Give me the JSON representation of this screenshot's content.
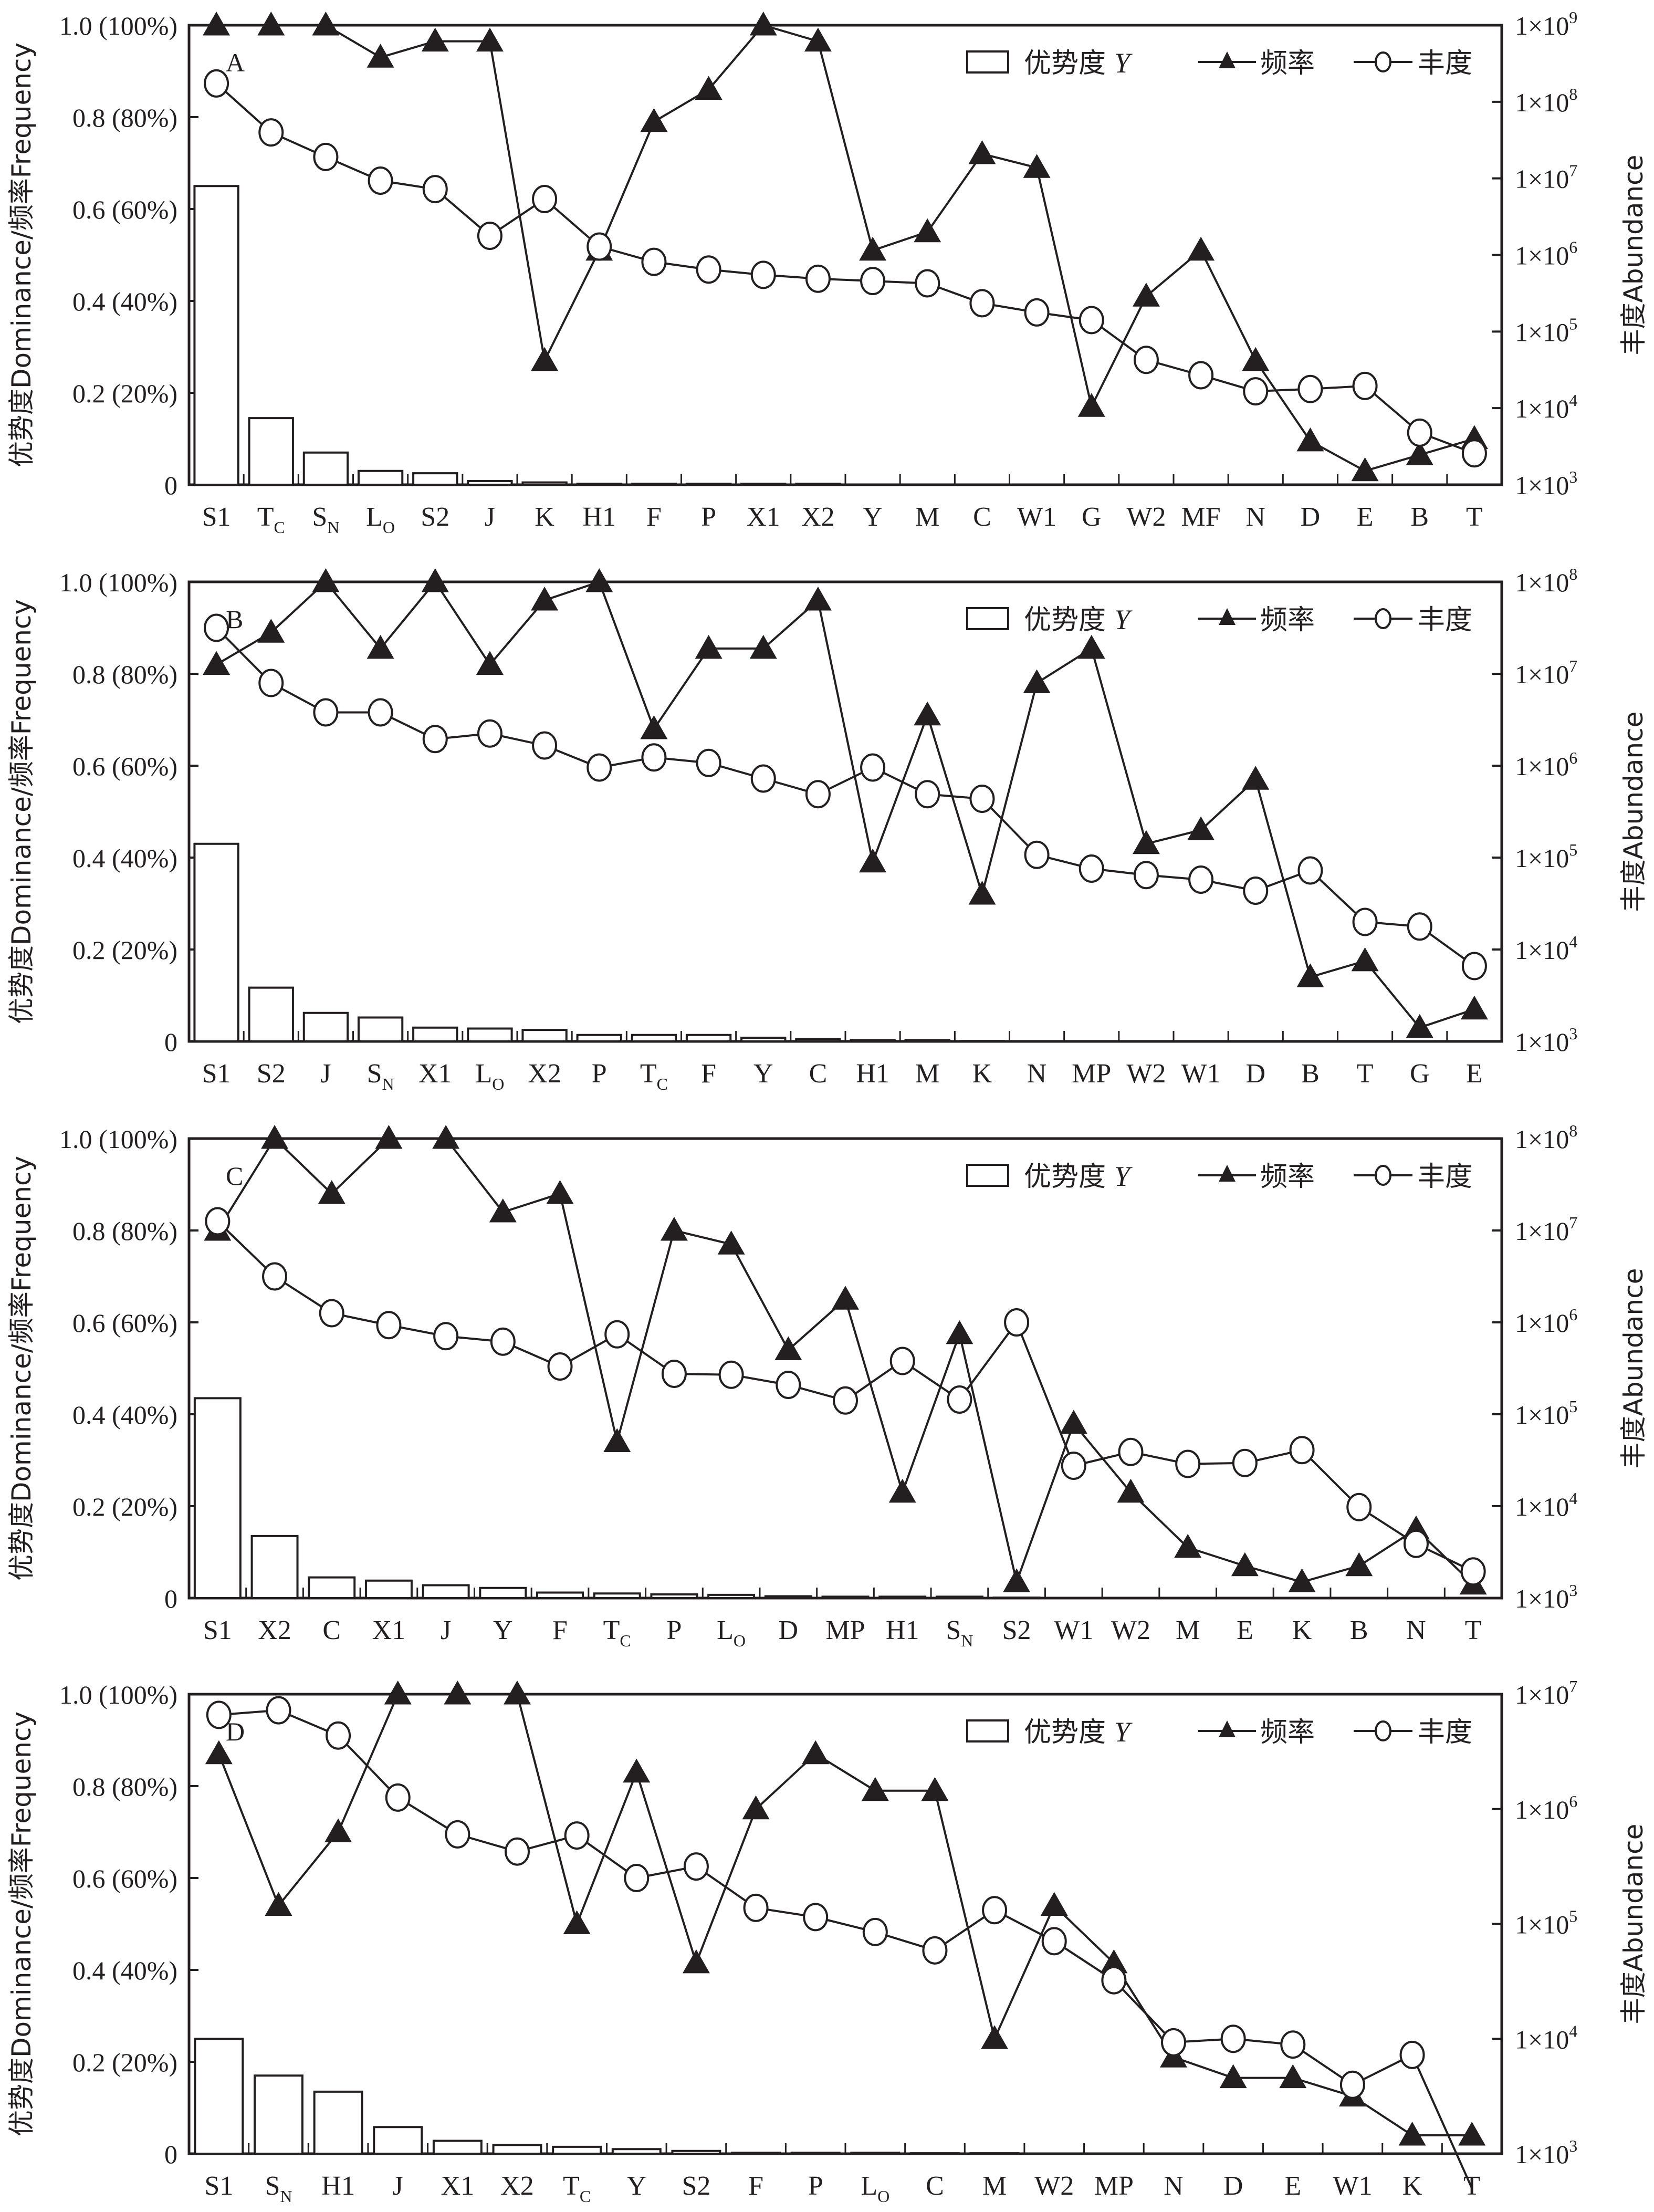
{
  "figure": {
    "legend": {
      "dominance_label": "优势度",
      "dominance_symbol": "Y",
      "frequency_label": "频率",
      "abundance_label": "丰度"
    },
    "left_axis_title": "优势度Dominance/频率Frequency",
    "right_axis_title": "丰度Abundance",
    "left_ticks": [
      "0",
      "0.2 (20%)",
      "0.4 (40%)",
      "0.6 (60%)",
      "0.8 (80%)",
      "1.0 (100%)"
    ]
  },
  "chart_data": [
    {
      "type": "bar+line",
      "panel": "A",
      "categories": [
        "S1",
        "T_C",
        "S_N",
        "L_O",
        "S2",
        "J",
        "K",
        "H1",
        "F",
        "P",
        "X1",
        "X2",
        "Y",
        "M",
        "C",
        "W1",
        "G",
        "W2",
        "MF",
        "N",
        "D",
        "E",
        "B",
        "T"
      ],
      "left_ylim": [
        0,
        1.0
      ],
      "right_ylim_log10": [
        3,
        9
      ],
      "right_ticks": [
        "1×10^3",
        "1×10^4",
        "1×10^5",
        "1×10^6",
        "1×10^7",
        "1×10^8",
        "1×10^9"
      ],
      "series": [
        {
          "name": "优势度 Y",
          "kind": "bar",
          "axis": "left",
          "values": [
            0.65,
            0.145,
            0.07,
            0.03,
            0.025,
            0.008,
            0.005,
            0.002,
            0.002,
            0.002,
            0.002,
            0.002,
            0,
            0,
            0,
            0,
            0,
            0,
            0,
            0,
            0,
            0,
            0,
            0
          ]
        },
        {
          "name": "频率",
          "kind": "line-triangle",
          "axis": "left",
          "values": [
            1.0,
            1.0,
            1.0,
            0.93,
            0.965,
            0.965,
            0.27,
            0.51,
            0.79,
            0.86,
            1.0,
            0.965,
            0.51,
            0.55,
            0.72,
            0.69,
            0.17,
            0.41,
            0.51,
            0.27,
            0.095,
            0.03,
            0.065,
            0.1
          ]
        },
        {
          "name": "丰度",
          "kind": "line-circle",
          "axis": "right",
          "log10_values": [
            8.24,
            7.6,
            7.28,
            6.97,
            6.86,
            6.25,
            6.73,
            6.11,
            5.91,
            5.81,
            5.74,
            5.69,
            5.66,
            5.63,
            5.37,
            5.25,
            5.15,
            4.63,
            4.43,
            4.22,
            4.25,
            4.29,
            3.68,
            3.41
          ]
        }
      ]
    },
    {
      "type": "bar+line",
      "panel": "B",
      "categories": [
        "S1",
        "S2",
        "J",
        "S_N",
        "X1",
        "L_O",
        "X2",
        "P",
        "T_C",
        "F",
        "Y",
        "C",
        "H1",
        "M",
        "K",
        "N",
        "MP",
        "W2",
        "W1",
        "D",
        "B",
        "T",
        "G",
        "E"
      ],
      "left_ylim": [
        0,
        1.0
      ],
      "right_ylim_log10": [
        3,
        8
      ],
      "right_ticks": [
        "1×10^3",
        "1×10^4",
        "1×10^5",
        "1×10^6",
        "1×10^7",
        "1×10^8"
      ],
      "series": [
        {
          "name": "优势度 Y",
          "kind": "bar",
          "axis": "left",
          "values": [
            0.43,
            0.117,
            0.062,
            0.052,
            0.03,
            0.028,
            0.025,
            0.014,
            0.014,
            0.014,
            0.008,
            0.005,
            0.003,
            0.003,
            0.001,
            0,
            0,
            0,
            0,
            0,
            0,
            0,
            0,
            0
          ]
        },
        {
          "name": "频率",
          "kind": "line-triangle",
          "axis": "left",
          "values": [
            0.82,
            0.89,
            1.0,
            0.855,
            1.0,
            0.82,
            0.96,
            1.0,
            0.68,
            0.855,
            0.855,
            0.96,
            0.39,
            0.71,
            0.32,
            0.78,
            0.855,
            0.43,
            0.46,
            0.57,
            0.14,
            0.175,
            0.03,
            0.07
          ]
        },
        {
          "name": "丰度",
          "kind": "line-circle",
          "axis": "right",
          "log10_values": [
            7.5,
            6.9,
            6.58,
            6.58,
            6.29,
            6.35,
            6.22,
            5.98,
            6.09,
            6.03,
            5.86,
            5.69,
            5.98,
            5.69,
            5.64,
            5.03,
            4.88,
            4.81,
            4.76,
            4.64,
            4.86,
            4.3,
            4.25,
            3.82
          ]
        }
      ]
    },
    {
      "type": "bar+line",
      "panel": "C",
      "categories": [
        "S1",
        "X2",
        "C",
        "X1",
        "J",
        "Y",
        "F",
        "T_C",
        "P",
        "L_O",
        "D",
        "MP",
        "H1",
        "S_N",
        "S2",
        "W1",
        "W2",
        "M",
        "E",
        "K",
        "B",
        "N",
        "T"
      ],
      "left_ylim": [
        0,
        1.0
      ],
      "right_ylim_log10": [
        3,
        8
      ],
      "right_ticks": [
        "1×10^3",
        "1×10^4",
        "1×10^5",
        "1×10^6",
        "1×10^7",
        "1×10^8"
      ],
      "series": [
        {
          "name": "优势度 Y",
          "kind": "bar",
          "axis": "left",
          "values": [
            0.435,
            0.135,
            0.045,
            0.038,
            0.028,
            0.022,
            0.012,
            0.01,
            0.008,
            0.007,
            0.004,
            0.003,
            0.003,
            0.003,
            0.001,
            0,
            0,
            0,
            0,
            0,
            0,
            0,
            0
          ]
        },
        {
          "name": "频率",
          "kind": "line-triangle",
          "axis": "left",
          "values": [
            0.8,
            1.0,
            0.88,
            1.0,
            1.0,
            0.84,
            0.88,
            0.34,
            0.8,
            0.77,
            0.54,
            0.65,
            0.23,
            0.575,
            0.035,
            0.38,
            0.23,
            0.11,
            0.07,
            0.035,
            0.07,
            0.15,
            0.03
          ]
        },
        {
          "name": "丰度",
          "kind": "line-circle",
          "axis": "right",
          "log10_values": [
            7.1,
            6.5,
            6.1,
            5.97,
            5.85,
            5.79,
            5.52,
            5.87,
            5.44,
            5.43,
            5.32,
            5.15,
            5.58,
            5.16,
            6.0,
            4.44,
            4.59,
            4.46,
            4.47,
            4.61,
            3.99,
            3.59,
            3.29
          ]
        }
      ]
    },
    {
      "type": "bar+line",
      "panel": "D",
      "categories": [
        "S1",
        "S_N",
        "H1",
        "J",
        "X1",
        "X2",
        "T_C",
        "Y",
        "S2",
        "F",
        "P",
        "L_O",
        "C",
        "M",
        "W2",
        "MP",
        "N",
        "D",
        "E",
        "W1",
        "K",
        "T"
      ],
      "left_ylim": [
        0,
        1.0
      ],
      "right_ylim_log10": [
        3,
        7
      ],
      "right_ticks": [
        "1×10^3",
        "1×10^4",
        "1×10^5",
        "1×10^6",
        "1×10^7"
      ],
      "series": [
        {
          "name": "优势度 Y",
          "kind": "bar",
          "axis": "left",
          "values": [
            0.25,
            0.17,
            0.135,
            0.058,
            0.028,
            0.019,
            0.015,
            0.01,
            0.006,
            0.002,
            0.002,
            0.002,
            0.001,
            0.001,
            0,
            0,
            0,
            0,
            0,
            0,
            0,
            0
          ]
        },
        {
          "name": "频率",
          "kind": "line-triangle",
          "axis": "left",
          "values": [
            0.87,
            0.54,
            0.7,
            1.0,
            1.0,
            1.0,
            0.5,
            0.83,
            0.415,
            0.75,
            0.87,
            0.79,
            0.79,
            0.25,
            0.54,
            0.415,
            0.21,
            0.165,
            0.165,
            0.125,
            0.04,
            0.04
          ]
        },
        {
          "name": "丰度",
          "kind": "line-circle",
          "axis": "right",
          "log10_values": [
            6.82,
            6.86,
            6.64,
            6.1,
            5.78,
            5.63,
            5.77,
            5.4,
            5.5,
            5.14,
            5.06,
            4.93,
            4.77,
            5.12,
            4.85,
            4.51,
            3.97,
            4.0,
            3.95,
            3.6,
            3.86,
            2.7
          ]
        }
      ]
    }
  ]
}
